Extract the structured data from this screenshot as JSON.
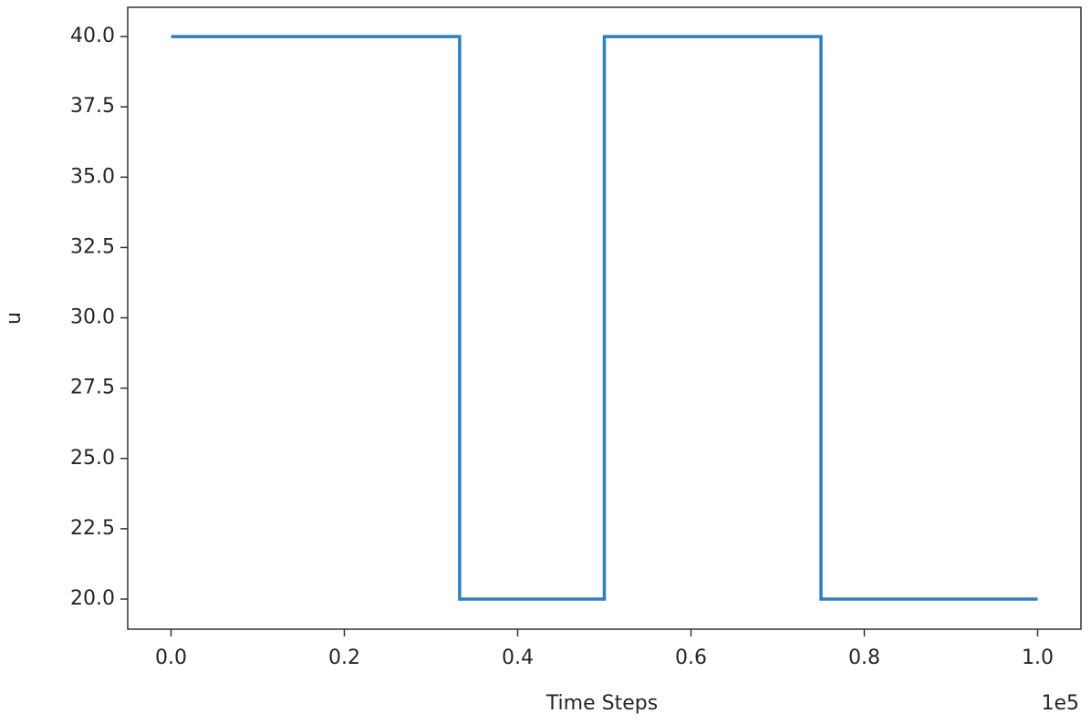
{
  "chart_data": {
    "type": "line",
    "xlabel": "Time Steps",
    "ylabel": "u",
    "x_offset_label": "1e5",
    "x": [
      0,
      0.333,
      0.333,
      0.5,
      0.5,
      0.75,
      0.75,
      1.0
    ],
    "series": [
      {
        "color": "#2f7fc1",
        "values": [
          40,
          40,
          20,
          20,
          40,
          40,
          20,
          20
        ]
      }
    ],
    "xlim": [
      -0.05,
      1.05
    ],
    "xticks": [
      {
        "value": 0,
        "label": "0.0"
      },
      0.2,
      0.4,
      0.6,
      0.8,
      {
        "value": 1,
        "label": "1.0"
      }
    ],
    "ylim": [
      18.93,
      41.04
    ],
    "yticks": [
      {
        "value": 20,
        "label": "20.0"
      },
      22.5,
      {
        "value": 25,
        "label": "25.0"
      },
      27.5,
      {
        "value": 30,
        "label": "30.0"
      },
      32.5,
      {
        "value": 35,
        "label": "35.0"
      },
      37.5,
      {
        "value": 40,
        "label": "40.0"
      }
    ],
    "grid": false
  }
}
